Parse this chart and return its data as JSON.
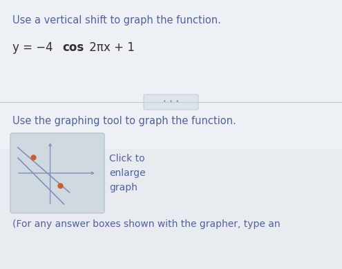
{
  "bg_color": "#e2eaf0",
  "upper_panel_color": "#edf1f5",
  "lower_panel_color": "#e8ecf0",
  "title_text": "Use a vertical shift to graph the function.",
  "subtitle_text": "Use the graphing tool to graph the function.",
  "click_text": "Click to\nenlarge\ngraph",
  "footer_text": "(For any answer boxes shown with the grapher, type an",
  "text_color": "#6070a0",
  "formula_color": "#303030",
  "title_color": "#5060a0",
  "axes_color": "#8090c0",
  "orange_dot_color": "#cc6030",
  "divider_color": "#c0cad5",
  "box_color": "#d0d8e0",
  "box_edge_color": "#b8c4cc",
  "dots_pill_color": "#dde5ea",
  "dots_pill_edge": "#c5cfd8"
}
